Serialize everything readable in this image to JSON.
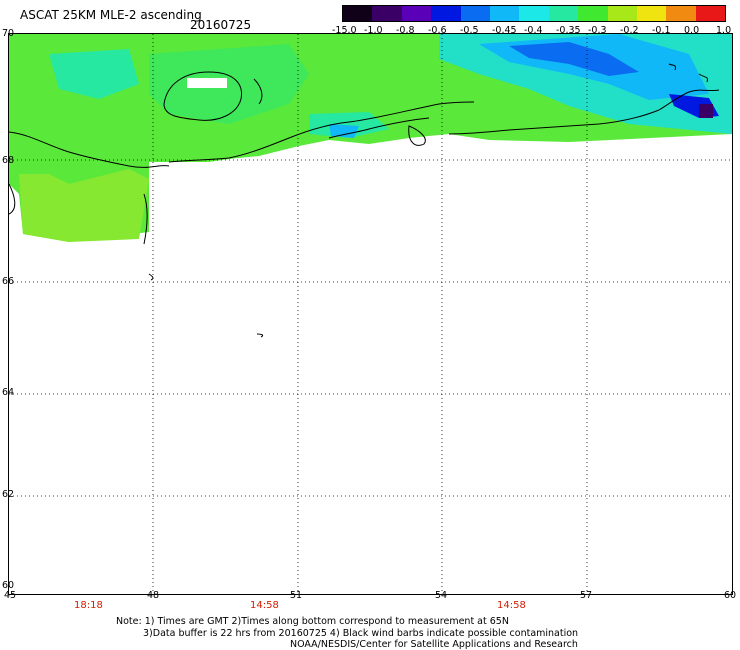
{
  "title": "ASCAT 25KM MLE-2 ascending",
  "date": "20160725",
  "colorbar": {
    "labels": [
      "-15.0",
      "-1.0",
      "-0.8",
      "-0.6",
      "-0.5",
      "-0.45",
      "-0.4",
      "-0.35",
      "-0.3",
      "-0.2",
      "-0.1",
      "0.0",
      "1.0"
    ],
    "colors": [
      "#100018",
      "#3a0066",
      "#5a00b8",
      "#0018e0",
      "#0a6cf0",
      "#10b8f8",
      "#1ce8e8",
      "#26e8a0",
      "#40e830",
      "#a8e818",
      "#f0e410",
      "#f08a10",
      "#e81818"
    ]
  },
  "map": {
    "lat_labels": [
      "70",
      "68",
      "66",
      "64",
      "62",
      "60"
    ],
    "lon_labels": [
      "45",
      "48",
      "51",
      "54",
      "57",
      "60"
    ],
    "times": [
      "18:18",
      "14:58",
      "14:58"
    ]
  },
  "notes": {
    "line1": "Note: 1) Times are GMT 2)Times along bottom correspond to measurement at 65N",
    "line2": "3)Data buffer is 22 hrs from 20160725 4) Black wind barbs indicate possible contamination",
    "line3": "NOAA/NESDIS/Center for Satellite Applications and Research"
  }
}
